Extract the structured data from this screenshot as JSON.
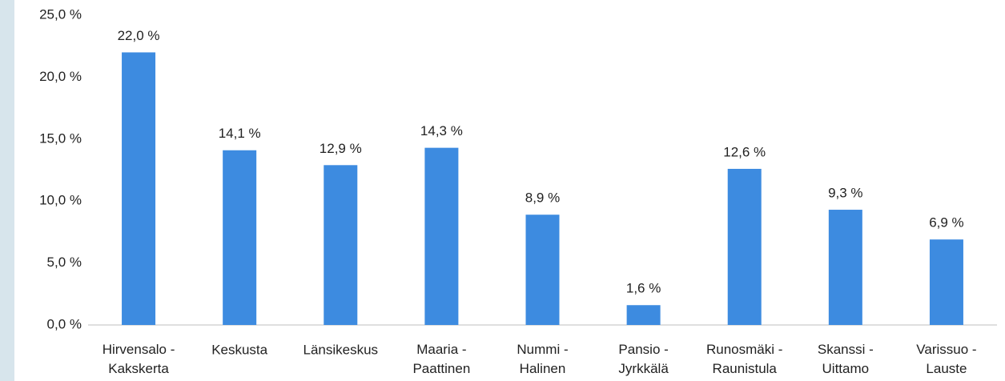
{
  "chart_data": {
    "type": "bar",
    "categories": [
      "Hirvensalo - Kakskerta",
      "Keskusta",
      "Länsikeskus",
      "Maaria - Paattinen",
      "Nummi - Halinen",
      "Pansio - Jyrkkälä",
      "Runosmäki - Raunistula",
      "Skanssi - Uittamo",
      "Varissuo - Lauste"
    ],
    "values": [
      22.0,
      14.1,
      12.9,
      14.3,
      8.9,
      1.6,
      12.6,
      9.3,
      6.9
    ],
    "value_labels": [
      "22,0 %",
      "14,1 %",
      "12,9 %",
      "14,3 %",
      "8,9 %",
      "1,6 %",
      "12,6 %",
      "9,3 %",
      "6,9 %"
    ],
    "color": "#3d8be0",
    "ylim": [
      0,
      25
    ],
    "yticks": [
      {
        "value": 0,
        "label": "0,0 %"
      },
      {
        "value": 5,
        "label": "5,0 %"
      },
      {
        "value": 10,
        "label": "10,0 %"
      },
      {
        "value": 15,
        "label": "15,0 %"
      },
      {
        "value": 20,
        "label": "20,0 %"
      },
      {
        "value": 25,
        "label": "25,0 %"
      }
    ],
    "grid": false
  }
}
